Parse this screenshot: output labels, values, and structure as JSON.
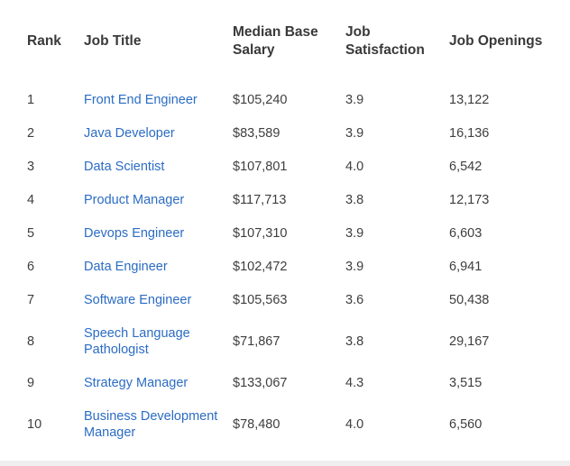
{
  "page": {
    "background_color": "#ffffff",
    "text_color": "#3e3e3e",
    "header_text_color": "#393939",
    "link_color": "#2b6cc4"
  },
  "table": {
    "columns": [
      {
        "key": "rank",
        "label": "Rank"
      },
      {
        "key": "title",
        "label": "Job Title"
      },
      {
        "key": "salary",
        "label": "Median Base Salary"
      },
      {
        "key": "satisfaction",
        "label": "Job Satisfaction"
      },
      {
        "key": "openings",
        "label": "Job Openings"
      }
    ],
    "rows": [
      {
        "rank": "1",
        "title": "Front End Engineer",
        "salary": "$105,240",
        "satisfaction": "3.9",
        "openings": "13,122"
      },
      {
        "rank": "2",
        "title": "Java Developer",
        "salary": "$83,589",
        "satisfaction": "3.9",
        "openings": "16,136"
      },
      {
        "rank": "3",
        "title": "Data Scientist",
        "salary": "$107,801",
        "satisfaction": "4.0",
        "openings": "6,542"
      },
      {
        "rank": "4",
        "title": "Product Manager",
        "salary": "$117,713",
        "satisfaction": "3.8",
        "openings": "12,173"
      },
      {
        "rank": "5",
        "title": "Devops Engineer",
        "salary": "$107,310",
        "satisfaction": "3.9",
        "openings": "6,603"
      },
      {
        "rank": "6",
        "title": "Data Engineer",
        "salary": "$102,472",
        "satisfaction": "3.9",
        "openings": "6,941"
      },
      {
        "rank": "7",
        "title": "Software Engineer",
        "salary": "$105,563",
        "satisfaction": "3.6",
        "openings": "50,438"
      },
      {
        "rank": "8",
        "title": "Speech Language Pathologist",
        "salary": "$71,867",
        "satisfaction": "3.8",
        "openings": "29,167"
      },
      {
        "rank": "9",
        "title": "Strategy Manager",
        "salary": "$133,067",
        "satisfaction": "4.3",
        "openings": "3,515"
      },
      {
        "rank": "10",
        "title": "Business Development Manager",
        "salary": "$78,480",
        "satisfaction": "4.0",
        "openings": "6,560"
      }
    ]
  },
  "chart_data": {
    "type": "table",
    "title": "",
    "columns": [
      "Rank",
      "Job Title",
      "Median Base Salary",
      "Job Satisfaction",
      "Job Openings"
    ],
    "rows": [
      [
        1,
        "Front End Engineer",
        105240,
        3.9,
        13122
      ],
      [
        2,
        "Java Developer",
        83589,
        3.9,
        16136
      ],
      [
        3,
        "Data Scientist",
        107801,
        4.0,
        6542
      ],
      [
        4,
        "Product Manager",
        117713,
        3.8,
        12173
      ],
      [
        5,
        "Devops Engineer",
        107310,
        3.9,
        6603
      ],
      [
        6,
        "Data Engineer",
        102472,
        3.9,
        6941
      ],
      [
        7,
        "Software Engineer",
        105563,
        3.6,
        50438
      ],
      [
        8,
        "Speech Language Pathologist",
        71867,
        3.8,
        29167
      ],
      [
        9,
        "Strategy Manager",
        133067,
        4.3,
        3515
      ],
      [
        10,
        "Business Development Manager",
        78480,
        4.0,
        6560
      ]
    ]
  }
}
